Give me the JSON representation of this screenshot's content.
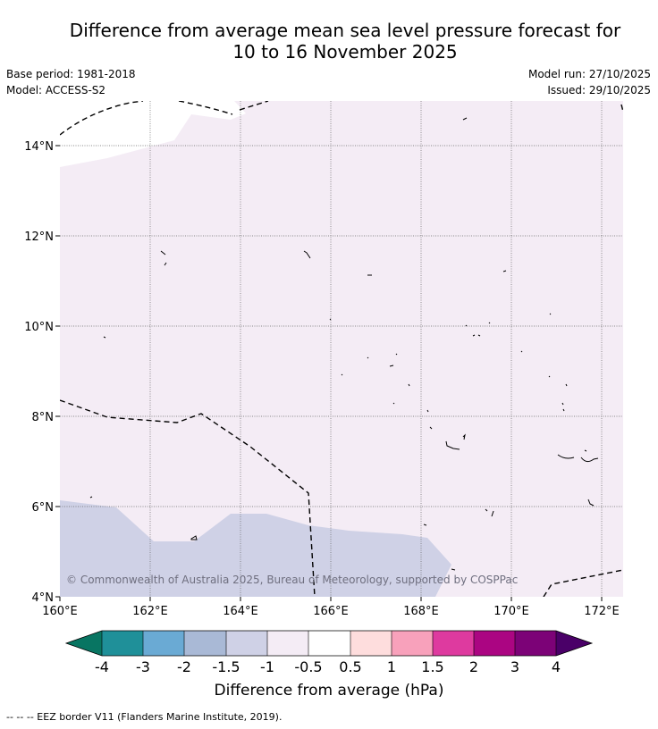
{
  "title": {
    "line1": "Difference from average mean sea level pressure forecast for",
    "line2": "10 to 16 November 2025"
  },
  "meta": {
    "base_period": "Base period: 1981-2018",
    "model": "Model: ACCESS-S2",
    "model_run": "Model run: 27/10/2025",
    "issued": "Issued: 29/10/2025"
  },
  "map": {
    "lon_labels": [
      "160°E",
      "162°E",
      "164°E",
      "166°E",
      "168°E",
      "170°E",
      "172°E"
    ],
    "lat_labels": [
      "14°N",
      "12°N",
      "10°N",
      "8°N",
      "6°N",
      "4°N"
    ],
    "copyright": "© Commonwealth of Australia 2025, Bureau of Meteorology, supported by COSPPac"
  },
  "colorbar": {
    "tick_labels": [
      "-4",
      "-3",
      "-2",
      "-1.5",
      "-1",
      "-0.5",
      "0.5",
      "1",
      "1.5",
      "2",
      "3",
      "4"
    ],
    "colors": [
      "#087562",
      "#1f9099",
      "#6aaad4",
      "#a9b9d6",
      "#cfd1e6",
      "#f4ecf5",
      "#ffffff",
      "#fedddd",
      "#f8a1bb",
      "#de3a9f",
      "#ab0582",
      "#7c0277",
      "#4a0068"
    ],
    "title": "Difference from average (hPa)"
  },
  "legend": {
    "text": "--  --  -- EEZ border V11 (Flanders Marine Institute, 2019)."
  }
}
